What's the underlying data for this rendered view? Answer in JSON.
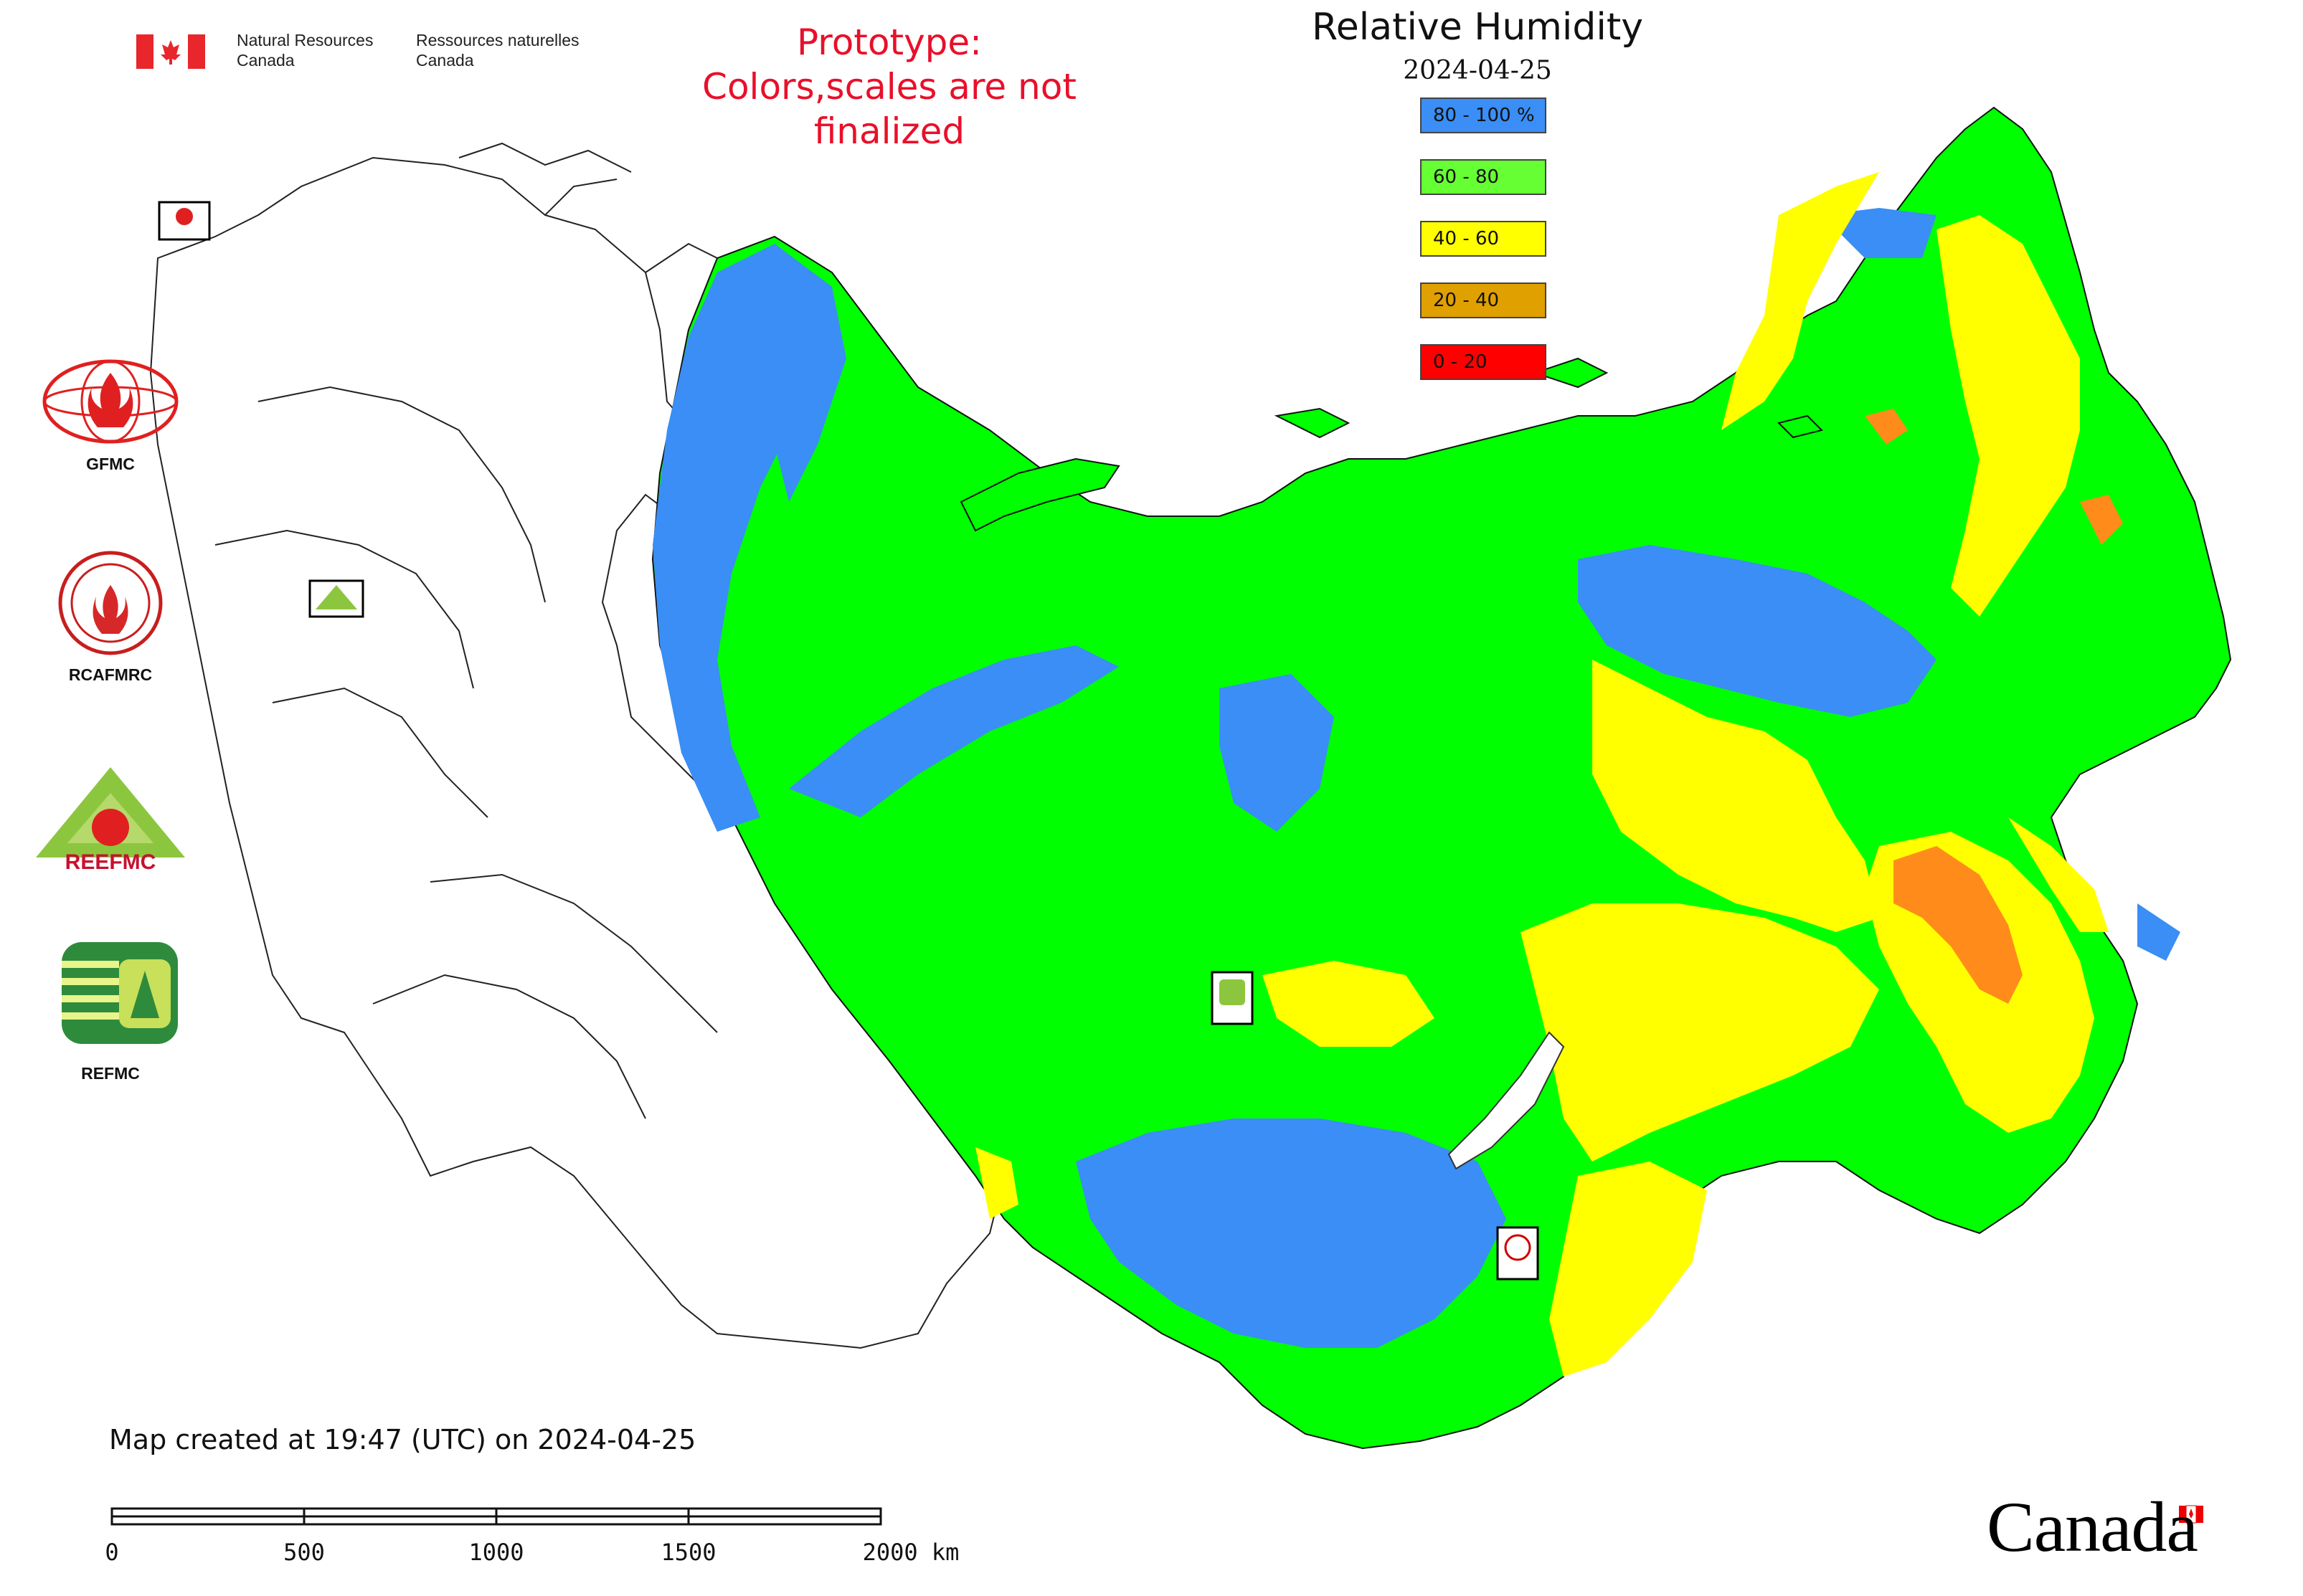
{
  "header": {
    "nrcan_en": [
      "Natural Resources",
      "Canada"
    ],
    "nrcan_fr": [
      "Ressources naturelles",
      "Canada"
    ],
    "prototype_line1": "Prototype:",
    "prototype_line2": "Colors,scales are not finalized"
  },
  "legend": {
    "title": "Relative Humidity",
    "date": "2024-04-25",
    "items": [
      {
        "label": "80 - 100 %",
        "color": "#3a8ef5"
      },
      {
        "label": "60 - 80",
        "color": "#66ff33"
      },
      {
        "label": "40 - 60",
        "color": "#ffff00"
      },
      {
        "label": "20 - 40",
        "color": "#e0a000"
      },
      {
        "label": "0 - 20",
        "color": "#ff0000"
      }
    ]
  },
  "partners": [
    {
      "label": "GFMC",
      "icon": "gfmc-logo"
    },
    {
      "label": "RCAFMRC",
      "icon": "rcafmrc-logo"
    },
    {
      "label": "REEFMC",
      "icon": "reefmc-logo"
    },
    {
      "label": "REFMC",
      "icon": "refmc-logo"
    }
  ],
  "map_markers": [
    {
      "icon": "gfmc-marker",
      "label": "GFMC"
    },
    {
      "icon": "reefmc-marker",
      "label": "REEFMC"
    },
    {
      "icon": "refmc-marker",
      "label": "REFMC"
    },
    {
      "icon": "rcafmrc-marker",
      "label": "RCAFMRC"
    }
  ],
  "footer": {
    "created": "Map created at 19:47 (UTC) on 2024-04-25",
    "scale_ticks": [
      "0",
      "500",
      "1000",
      "1500",
      "2000 km"
    ],
    "wordmark": "Canada"
  },
  "colors": {
    "wet": "#3a8ef5",
    "moist": "#00ff00",
    "dry": "#ffff00",
    "very_dry": "#ff8c1a",
    "background": "#ffffff",
    "prototype_text": "#e8102a"
  }
}
